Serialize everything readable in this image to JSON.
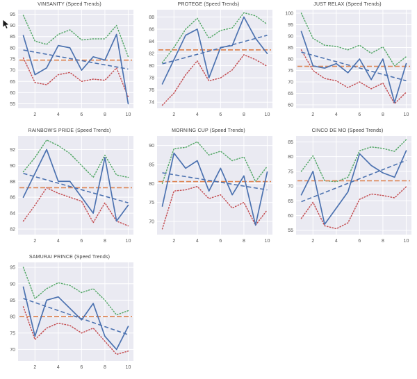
{
  "page": {
    "background": "#ffffff"
  },
  "palette": {
    "speed_line": "#4c72b0",
    "trend_line": "#4c72b0",
    "mean_line": "#dd8452",
    "upper_band": "#55a868",
    "lower_band": "#c44e52",
    "plot_bg": "#eaeaf2",
    "grid": "#ffffff",
    "tick_text": "#555555",
    "title_text": "#3d3d3d"
  },
  "cursor": {
    "name": "mouse-pointer"
  },
  "chart_data": [
    {
      "type": "line",
      "title": "VINSANITY (Speed Trends)",
      "x": [
        1,
        2,
        3,
        4,
        5,
        6,
        7,
        8,
        9,
        10
      ],
      "xticks": [
        2,
        4,
        6,
        8,
        10
      ],
      "yticks": [
        55,
        60,
        65,
        70,
        75,
        80,
        85,
        90,
        95
      ],
      "xlim": [
        0.55,
        10.45
      ],
      "ylim": [
        53,
        97
      ],
      "series": [
        {
          "name": "speed",
          "style": "solid",
          "color": "#4c72b0",
          "values": [
            85.5,
            68,
            71,
            81,
            80,
            70,
            76,
            74.5,
            86,
            55
          ]
        },
        {
          "name": "upper_band",
          "style": "dotted",
          "color": "#55a868",
          "values": [
            94.5,
            83,
            81.5,
            86,
            88,
            83.5,
            84,
            84,
            90,
            76
          ]
        },
        {
          "name": "lower_band",
          "style": "dotted",
          "color": "#c44e52",
          "values": [
            75.5,
            64.5,
            63.5,
            68,
            69,
            65,
            66,
            65.5,
            71,
            58
          ]
        }
      ],
      "mean_line": {
        "style": "dashed",
        "color": "#dd8452",
        "value": 74.5
      },
      "trend_line": {
        "style": "dashed",
        "color": "#4c72b0",
        "start": 79,
        "end": 70.5
      }
    },
    {
      "type": "line",
      "title": "PROTEGE (Speed Trends)",
      "x": [
        1,
        2,
        3,
        4,
        5,
        6,
        7,
        8,
        9,
        10
      ],
      "xticks": [
        2,
        4,
        6,
        8,
        10
      ],
      "yticks": [
        74,
        76,
        78,
        80,
        82,
        84,
        86,
        88
      ],
      "xlim": [
        0.55,
        10.45
      ],
      "ylim": [
        73,
        89.2
      ],
      "series": [
        {
          "name": "speed",
          "style": "solid",
          "color": "#4c72b0",
          "values": [
            77,
            81,
            85,
            86,
            78,
            83,
            83.3,
            88,
            84.5,
            82
          ]
        },
        {
          "name": "upper_band",
          "style": "dotted",
          "color": "#55a868",
          "values": [
            80.5,
            83,
            86,
            87.8,
            84.5,
            85.8,
            86.2,
            88.7,
            88.2,
            86.8
          ]
        },
        {
          "name": "lower_band",
          "style": "dotted",
          "color": "#c44e52",
          "values": [
            73.5,
            75.5,
            78.5,
            80.8,
            77.5,
            78,
            79.3,
            81.8,
            81,
            79.9
          ]
        }
      ],
      "mean_line": {
        "style": "dashed",
        "color": "#dd8452",
        "value": 82.6
      },
      "trend_line": {
        "style": "dashed",
        "color": "#4c72b0",
        "start": 80.3,
        "end": 85
      }
    },
    {
      "type": "line",
      "title": "JUST RELAX (Speed Trends)",
      "x": [
        1,
        2,
        3,
        4,
        5,
        6,
        7,
        8,
        9,
        10
      ],
      "xticks": [
        2,
        4,
        6,
        8,
        10
      ],
      "yticks": [
        60,
        65,
        70,
        75,
        80,
        85,
        90,
        95,
        100
      ],
      "xlim": [
        0.55,
        10.45
      ],
      "ylim": [
        58.5,
        101.5
      ],
      "series": [
        {
          "name": "speed",
          "style": "solid",
          "color": "#4c72b0",
          "values": [
            92,
            77,
            76,
            78,
            74,
            80,
            71,
            80,
            61,
            78
          ]
        },
        {
          "name": "upper_band",
          "style": "dotted",
          "color": "#55a868",
          "values": [
            100,
            89,
            86,
            85.5,
            84,
            86,
            82.5,
            85.3,
            77,
            81
          ]
        },
        {
          "name": "lower_band",
          "style": "dotted",
          "color": "#c44e52",
          "values": [
            84,
            75,
            71.5,
            70.5,
            67.5,
            70,
            67,
            69.5,
            60.5,
            65.5
          ]
        }
      ],
      "mean_line": {
        "style": "dashed",
        "color": "#dd8452",
        "value": 76.8
      },
      "trend_line": {
        "style": "dashed",
        "color": "#4c72b0",
        "start": 83,
        "end": 70.5
      }
    },
    {
      "type": "line",
      "title": "RAINBOW'S PRIDE (Speed Trends)",
      "x": [
        1,
        2,
        3,
        4,
        5,
        6,
        7,
        8,
        9,
        10
      ],
      "xticks": [
        2,
        4,
        6,
        8,
        10
      ],
      "yticks": [
        82,
        84,
        86,
        88,
        90,
        92
      ],
      "xlim": [
        0.55,
        10.45
      ],
      "ylim": [
        81.3,
        93.7
      ],
      "series": [
        {
          "name": "speed",
          "style": "solid",
          "color": "#4c72b0",
          "values": [
            86,
            89,
            92,
            88,
            88,
            86,
            84,
            91,
            83,
            85
          ]
        },
        {
          "name": "upper_band",
          "style": "dotted",
          "color": "#55a868",
          "values": [
            89.2,
            91,
            93.2,
            92.5,
            91.5,
            90,
            88.5,
            91.3,
            88.8,
            88.5
          ]
        },
        {
          "name": "lower_band",
          "style": "dotted",
          "color": "#c44e52",
          "values": [
            83,
            85,
            87.2,
            86.5,
            86,
            85.5,
            82.8,
            85.3,
            83,
            82.4
          ]
        }
      ],
      "mean_line": {
        "style": "dashed",
        "color": "#dd8452",
        "value": 87.2
      },
      "trend_line": {
        "style": "dashed",
        "color": "#4c72b0",
        "start": 89,
        "end": 85.3
      }
    },
    {
      "type": "line",
      "title": "MORNING CUP (Speed Trends)",
      "x": [
        1,
        2,
        3,
        4,
        5,
        6,
        7,
        8,
        9,
        10
      ],
      "xticks": [
        2,
        4,
        6,
        8,
        10
      ],
      "yticks": [
        70,
        75,
        80,
        85,
        90
      ],
      "xlim": [
        0.55,
        10.45
      ],
      "ylim": [
        66.5,
        92.5
      ],
      "series": [
        {
          "name": "speed",
          "style": "solid",
          "color": "#4c72b0",
          "values": [
            74,
            88,
            84,
            86,
            78,
            84,
            77,
            82,
            69,
            83
          ]
        },
        {
          "name": "upper_band",
          "style": "dotted",
          "color": "#55a868",
          "values": [
            80,
            89.2,
            89.5,
            91,
            87.5,
            88.5,
            86,
            87,
            80.5,
            84.5
          ]
        },
        {
          "name": "lower_band",
          "style": "dotted",
          "color": "#c44e52",
          "values": [
            68,
            78,
            78.3,
            79.2,
            76,
            77,
            73.5,
            75,
            69,
            73
          ]
        }
      ],
      "mean_line": {
        "style": "dashed",
        "color": "#dd8452",
        "value": 80.5
      },
      "trend_line": {
        "style": "dashed",
        "color": "#4c72b0",
        "start": 82.8,
        "end": 78.3
      }
    },
    {
      "type": "line",
      "title": "CINCO DE MO (Speed Trends)",
      "x": [
        1,
        2,
        3,
        4,
        5,
        6,
        7,
        8,
        9,
        10
      ],
      "xticks": [
        2,
        4,
        6,
        8,
        10
      ],
      "yticks": [
        55,
        60,
        65,
        70,
        75,
        80,
        85
      ],
      "xlim": [
        0.55,
        10.45
      ],
      "ylim": [
        53.5,
        87
      ],
      "series": [
        {
          "name": "speed",
          "style": "solid",
          "color": "#4c72b0",
          "values": [
            67,
            75,
            57,
            62.5,
            68,
            81,
            77,
            74.5,
            73,
            82
          ]
        },
        {
          "name": "upper_band",
          "style": "dotted",
          "color": "#55a868",
          "values": [
            75,
            80.3,
            71.8,
            71.5,
            73,
            82,
            83.3,
            82.8,
            81.8,
            85.8
          ]
        },
        {
          "name": "lower_band",
          "style": "dotted",
          "color": "#c44e52",
          "values": [
            59,
            64.5,
            56.5,
            55.5,
            57.5,
            65.5,
            67.3,
            66.8,
            66,
            69.8
          ]
        }
      ],
      "mean_line": {
        "style": "dashed",
        "color": "#dd8452",
        "value": 71.8
      },
      "trend_line": {
        "style": "dashed",
        "color": "#4c72b0",
        "start": 64.7,
        "end": 78.7
      }
    },
    {
      "type": "line",
      "title": "SAMURAI PRINCE (Speed Trends)",
      "x": [
        1,
        2,
        3,
        4,
        5,
        6,
        7,
        8,
        9,
        10
      ],
      "xticks": [
        2,
        4,
        6,
        8,
        10
      ],
      "yticks": [
        70,
        75,
        80,
        85,
        90,
        95
      ],
      "xlim": [
        0.55,
        10.45
      ],
      "ylim": [
        66.5,
        96.5
      ],
      "series": [
        {
          "name": "speed",
          "style": "solid",
          "color": "#4c72b0",
          "values": [
            89,
            74,
            85,
            86,
            82.5,
            79,
            84,
            74,
            70,
            77
          ]
        },
        {
          "name": "upper_band",
          "style": "dotted",
          "color": "#55a868",
          "values": [
            95,
            85.5,
            88.5,
            90.3,
            89.5,
            87.3,
            88.5,
            85,
            80.5,
            81.8
          ]
        },
        {
          "name": "lower_band",
          "style": "dotted",
          "color": "#c44e52",
          "values": [
            83,
            73,
            76.5,
            78,
            77.3,
            75,
            76.5,
            72.5,
            68.5,
            69.5
          ]
        }
      ],
      "mean_line": {
        "style": "dashed",
        "color": "#dd8452",
        "value": 80
      },
      "trend_line": {
        "style": "dashed",
        "color": "#4c72b0",
        "start": 85.5,
        "end": 74.5
      }
    }
  ]
}
